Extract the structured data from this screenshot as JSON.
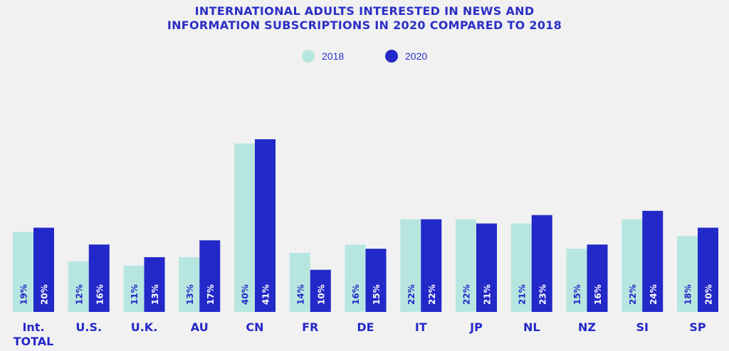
{
  "chart_data": {
    "type": "bar",
    "title": [
      "INTERNATIONAL ADULTS INTERESTED IN NEWS AND",
      "INFORMATION SUBSCRIPTIONS IN 2020 COMPARED TO 2018"
    ],
    "categories": [
      [
        "Int.",
        "TOTAL"
      ],
      [
        "U.S."
      ],
      [
        "U.K."
      ],
      [
        "AU"
      ],
      [
        "CN"
      ],
      [
        "FR"
      ],
      [
        "DE"
      ],
      [
        "IT"
      ],
      [
        "JP"
      ],
      [
        "NL"
      ],
      [
        "NZ"
      ],
      [
        "SI"
      ],
      [
        "SP"
      ]
    ],
    "series": [
      {
        "name": "2018",
        "color": "#b7e6e0",
        "values": [
          19,
          12,
          11,
          13,
          40,
          14,
          16,
          22,
          22,
          21,
          15,
          22,
          18
        ]
      },
      {
        "name": "2020",
        "color": "#2328c8",
        "values": [
          20,
          16,
          13,
          17,
          41,
          10,
          15,
          22,
          21,
          23,
          16,
          24,
          20
        ]
      }
    ],
    "value_suffix": "%",
    "ylim": [
      0,
      46
    ],
    "grid": false,
    "legend_position": "top-center"
  }
}
